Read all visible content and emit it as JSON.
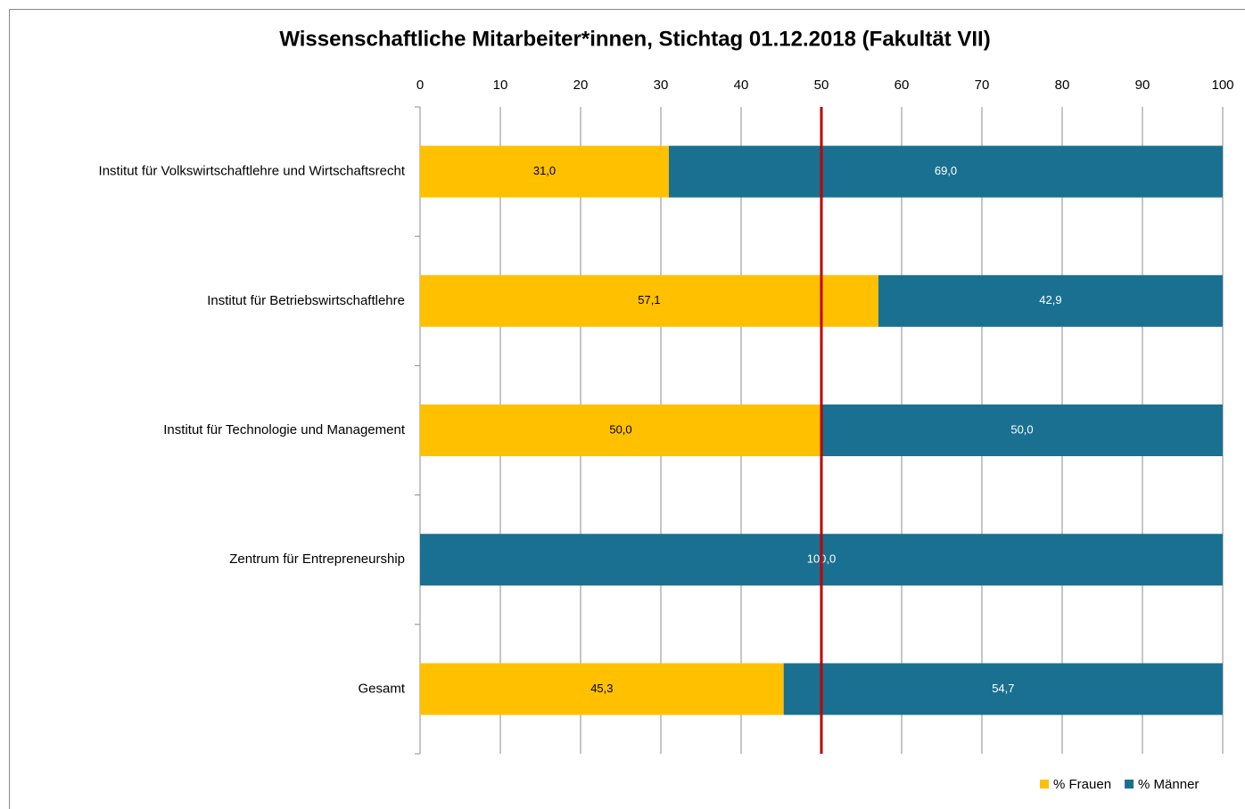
{
  "chart_data": {
    "type": "stacked_barh",
    "title": "Wissenschaftliche Mitarbeiter*innen, Stichtag 01.12.2018  (Fakultät VII)",
    "categories": [
      "Institut für Volkswirtschaftlehre und Wirtschaftsrecht",
      "Institut für Betriebswirtschaftlehre",
      "Institut für Technologie und Management",
      "Zentrum für Entrepreneurship",
      "Gesamt"
    ],
    "series": [
      {
        "name": "% Frauen",
        "color": "#ffc000",
        "values": [
          31.0,
          57.1,
          50.0,
          0,
          45.3
        ],
        "value_labels": [
          "31,0",
          "57,1",
          "50,0",
          null,
          "45,3"
        ]
      },
      {
        "name": "% Männer",
        "color": "#1a7090",
        "values": [
          69.0,
          42.9,
          50.0,
          100.0,
          54.7
        ],
        "value_labels": [
          "69,0",
          "42,9",
          "50,0",
          "100,0",
          "54,7"
        ]
      }
    ],
    "xlim": [
      0,
      100
    ],
    "xticks": [
      0,
      10,
      20,
      30,
      40,
      50,
      60,
      70,
      80,
      90,
      100
    ],
    "grid": true,
    "legend": "bottom-right",
    "reference_line": {
      "value": 50,
      "color": "#c00000"
    }
  }
}
